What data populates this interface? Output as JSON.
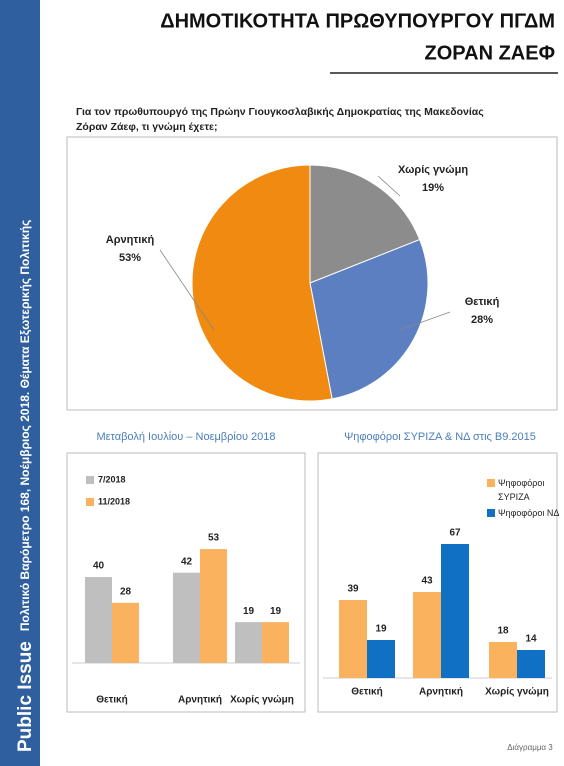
{
  "header": {
    "title_lines": [
      "ΔΗΜΟΤΙΚΟΤΗΤΑ ΠΡΩΘΥΠΟΥΡΓΟΥ ΠΓΔΜ",
      "ΖΟΡΑΝ ΖΑΕΦ"
    ]
  },
  "sidebar": {
    "brand": "Public Issue",
    "source": "Πολιτικό Βαρόμετρο 168, Νοέμβριος 2018. Θέματα Εξωτερικής Πολιτικής"
  },
  "question_lines": [
    "Για τον πρωθυπουργό της Πρώην Γιουγκοσλαβικής Δημοκρατίας της Μακεδονίας",
    "Ζόραν Ζάεφ, τι γνώμη έχετε;"
  ],
  "chart_data": [
    {
      "type": "pie",
      "categories": [
        "Χωρίς γνώμη",
        "Θετική",
        "Αρνητική"
      ],
      "values": [
        19,
        28,
        53
      ],
      "value_labels": [
        "19%",
        "28%",
        "53%"
      ],
      "colors": [
        "#8c8c8c",
        "#5b7fc0",
        "#f08a10"
      ]
    },
    {
      "type": "bar",
      "title": "Μεταβολή Ιουλίου – Νοεμβρίου 2018",
      "categories": [
        "Θετική",
        "Αρνητική",
        "Χωρίς γνώμη"
      ],
      "series": [
        {
          "name": "7/2018",
          "color": "#bfbfbf",
          "values": [
            40,
            42,
            19
          ]
        },
        {
          "name": "11/2018",
          "color": "#fbb25f",
          "values": [
            28,
            53,
            19
          ]
        }
      ]
    },
    {
      "type": "bar",
      "title": "Ψηφοφόροι ΣΥΡΙΖΑ & ΝΔ στις Β9.2015",
      "categories": [
        "Θετική",
        "Αρνητική",
        "Χωρίς γνώμη"
      ],
      "series": [
        {
          "name": "Ψηφοφόροι ΣΥΡΙΖΑ",
          "color": "#fbb25f",
          "values": [
            39,
            43,
            18
          ]
        },
        {
          "name": "Ψηφοφόροι ΝΔ",
          "color": "#1070c4",
          "values": [
            19,
            67,
            14
          ]
        }
      ]
    }
  ],
  "footer": "Διάγραμμα 3"
}
